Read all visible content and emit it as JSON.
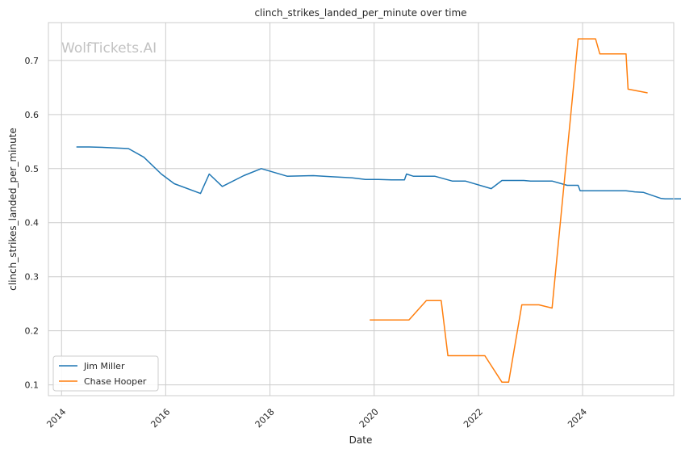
{
  "watermark": "WolfTickets.AI",
  "chart_data": {
    "type": "line",
    "title": "clinch_strikes_landed_per_minute over time",
    "xlabel": "Date",
    "ylabel": "clinch_strikes_landed_per_minute",
    "xlim": [
      "2013-10-01",
      "2025-10-01"
    ],
    "ylim": [
      0.08,
      0.77
    ],
    "xticks": [
      "2014",
      "2016",
      "2018",
      "2020",
      "2022",
      "2024"
    ],
    "yticks": [
      "0.1",
      "0.2",
      "0.3",
      "0.4",
      "0.5",
      "0.6",
      "0.7"
    ],
    "grid": true,
    "legend_position": "lower-left",
    "series": [
      {
        "name": "Jim Miller",
        "color": "#1f77b4",
        "points": [
          [
            "2014-04-15",
            0.54
          ],
          [
            "2014-07-15",
            0.54
          ],
          [
            "2014-11-15",
            0.539
          ],
          [
            "2015-04-15",
            0.537
          ],
          [
            "2015-08-01",
            0.521
          ],
          [
            "2015-12-01",
            0.49
          ],
          [
            "2016-03-01",
            0.472
          ],
          [
            "2016-09-01",
            0.454
          ],
          [
            "2016-11-01",
            0.49
          ],
          [
            "2017-02-01",
            0.467
          ],
          [
            "2017-07-01",
            0.487
          ],
          [
            "2017-11-01",
            0.5
          ],
          [
            "2018-05-01",
            0.486
          ],
          [
            "2018-11-01",
            0.487
          ],
          [
            "2019-03-01",
            0.485
          ],
          [
            "2019-08-01",
            0.483
          ],
          [
            "2019-11-01",
            0.48
          ],
          [
            "2020-02-01",
            0.48
          ],
          [
            "2020-05-01",
            0.479
          ],
          [
            "2020-08-01",
            0.479
          ],
          [
            "2020-08-15",
            0.49
          ],
          [
            "2020-10-01",
            0.486
          ],
          [
            "2021-03-01",
            0.486
          ],
          [
            "2021-07-01",
            0.477
          ],
          [
            "2021-10-01",
            0.477
          ],
          [
            "2022-04-01",
            0.463
          ],
          [
            "2022-06-15",
            0.478
          ],
          [
            "2022-11-15",
            0.478
          ],
          [
            "2023-01-01",
            0.477
          ],
          [
            "2023-06-01",
            0.477
          ],
          [
            "2023-09-15",
            0.469
          ],
          [
            "2023-12-01",
            0.469
          ],
          [
            "2023-12-15",
            0.459
          ],
          [
            "2024-06-01",
            0.459
          ],
          [
            "2024-11-01",
            0.459
          ],
          [
            "2025-01-01",
            0.457
          ],
          [
            "2025-03-01",
            0.456
          ],
          [
            "2025-07-01",
            0.445
          ],
          [
            "2025-08-01",
            0.444
          ],
          [
            "2026-01-01",
            0.444
          ]
        ]
      },
      {
        "name": "Chase Hooper",
        "color": "#ff7f0e",
        "points": [
          [
            "2019-12-01",
            0.22
          ],
          [
            "2020-09-01",
            0.22
          ],
          [
            "2021-01-01",
            0.256
          ],
          [
            "2021-04-15",
            0.256
          ],
          [
            "2021-06-01",
            0.154
          ],
          [
            "2022-02-15",
            0.154
          ],
          [
            "2022-06-15",
            0.105
          ],
          [
            "2022-08-01",
            0.105
          ],
          [
            "2022-11-01",
            0.248
          ],
          [
            "2023-03-01",
            0.248
          ],
          [
            "2023-06-01",
            0.242
          ],
          [
            "2023-12-01",
            0.74
          ],
          [
            "2024-04-01",
            0.74
          ],
          [
            "2024-05-01",
            0.712
          ],
          [
            "2024-11-01",
            0.712
          ],
          [
            "2024-11-15",
            0.647
          ],
          [
            "2025-04-01",
            0.64
          ]
        ]
      }
    ]
  }
}
